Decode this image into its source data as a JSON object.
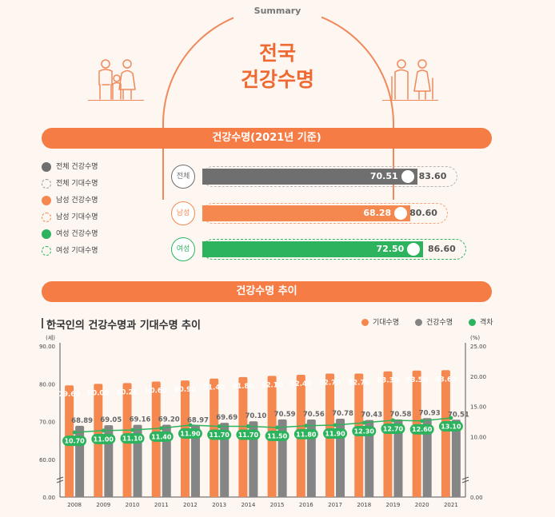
{
  "header": {
    "summary_label": "Summary",
    "title_line1": "전국",
    "title_line2": "건강수명"
  },
  "section1": {
    "title": "건강수명(2021년 기준)",
    "legend": [
      {
        "label": "전체 건강수명",
        "color": "#6f6f6f",
        "style": "solid"
      },
      {
        "label": "전체 기대수명",
        "color": "#9a9a9a",
        "style": "dashed"
      },
      {
        "label": "남성 건강수명",
        "color": "#f5884f",
        "style": "solid"
      },
      {
        "label": "남성 기대수명",
        "color": "#f5884f",
        "style": "dashed"
      },
      {
        "label": "여성 건강수명",
        "color": "#2db35d",
        "style": "solid"
      },
      {
        "label": "여성 기대수명",
        "color": "#2db35d",
        "style": "dashed"
      }
    ],
    "rows": [
      {
        "group": "전체",
        "healthy": "70.51",
        "life": "83.60",
        "color": "#6f6f6f",
        "track": "#b5b5b5",
        "healthy_value": 70.51,
        "life_value": 83.6
      },
      {
        "group": "남성",
        "healthy": "68.28",
        "life": "80.60",
        "color": "#f5884f",
        "track": "#f5a47a",
        "healthy_value": 68.28,
        "life_value": 80.6
      },
      {
        "group": "여성",
        "healthy": "72.50",
        "life": "86.60",
        "color": "#2db35d",
        "track": "#2db35d",
        "healthy_value": 72.5,
        "life_value": 86.6
      }
    ]
  },
  "section2": {
    "band_title": "건강수명 추이",
    "chart_title": "한국인의 건강수명과 기대수명 추이"
  },
  "chart_data": {
    "type": "bar",
    "title": "한국인의 건강수명과 기대수명 추이",
    "left_unit": "(세)",
    "right_unit": "(%)",
    "categories": [
      "2008",
      "2009",
      "2010",
      "2011",
      "2012",
      "2013",
      "2014",
      "2015",
      "2016",
      "2017",
      "2018",
      "2019",
      "2020",
      "2021"
    ],
    "series": [
      {
        "name": "기대수명",
        "color": "#f5884f",
        "axis": "left",
        "values": [
          79.6,
          80.0,
          80.2,
          80.6,
          80.9,
          81.4,
          81.8,
          82.1,
          82.4,
          82.7,
          82.7,
          83.3,
          83.5,
          83.6
        ],
        "labels": [
          "79.60",
          "80.00",
          "80.20",
          "80.60",
          "80.90",
          "81.40",
          "81.80",
          "82.10",
          "82.40",
          "82.70",
          "82.70",
          "83.30",
          "83.50",
          "83.60"
        ]
      },
      {
        "name": "건강수명",
        "color": "#858585",
        "axis": "left",
        "values": [
          68.89,
          69.05,
          69.16,
          69.2,
          68.97,
          69.69,
          70.1,
          70.59,
          70.56,
          70.78,
          70.43,
          70.58,
          70.93,
          70.51
        ],
        "labels": [
          "68.89",
          "69.05",
          "69.16",
          "69.20",
          "68.97",
          "69.69",
          "70.10",
          "70.59",
          "70.56",
          "70.78",
          "70.43",
          "70.58",
          "70.93",
          "70.51"
        ]
      },
      {
        "name": "격차",
        "color": "#2db35d",
        "axis": "right",
        "type": "line",
        "values": [
          10.7,
          11.0,
          11.1,
          11.4,
          11.9,
          11.7,
          11.7,
          11.5,
          11.8,
          11.9,
          12.3,
          12.7,
          12.6,
          13.1
        ],
        "labels": [
          "10.70",
          "11.00",
          "11.10",
          "11.40",
          "11.90",
          "11.70",
          "11.70",
          "11.50",
          "11.80",
          "11.90",
          "12.30",
          "12.70",
          "12.60",
          "13.10"
        ]
      }
    ],
    "left_ticks": [
      "90.00",
      "80.00",
      "70.00",
      "60.00",
      "0.00"
    ],
    "right_ticks": [
      "25.00",
      "20.00",
      "15.00",
      "10.00",
      "0.00"
    ],
    "ylim_left": [
      55,
      90
    ],
    "ylim_right": [
      0,
      25
    ],
    "axis_break": true,
    "grid": false,
    "legend_position": "top-right"
  }
}
